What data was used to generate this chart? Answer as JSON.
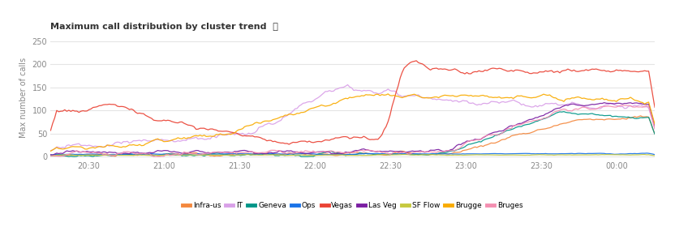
{
  "title": "Maximum call distribution by cluster trend  ⓘ",
  "ylabel": "Max number of calls",
  "yticks": [
    0,
    50,
    100,
    150,
    200,
    250
  ],
  "ylim": [
    -5,
    260
  ],
  "xtick_labels": [
    "20:30",
    "21:00",
    "21:30",
    "22:00",
    "22:30",
    "23:00",
    "23:30",
    "00:00"
  ],
  "bg_color": "#ffffff",
  "plot_bg": "#ffffff",
  "grid_color": "#e5e5e5",
  "legend_labels": [
    "Infra-us",
    "IT",
    "Geneva",
    "Ops",
    "Vegas",
    "Las Veg",
    "SF Flow",
    "Brugge",
    "Bruges"
  ],
  "legend_colors": [
    "#f4883e",
    "#d9a0e8",
    "#009688",
    "#1a73e8",
    "#ea4335",
    "#7b1fa2",
    "#c6c93f",
    "#f9ab00",
    "#f48fb1"
  ],
  "n_points": 300
}
